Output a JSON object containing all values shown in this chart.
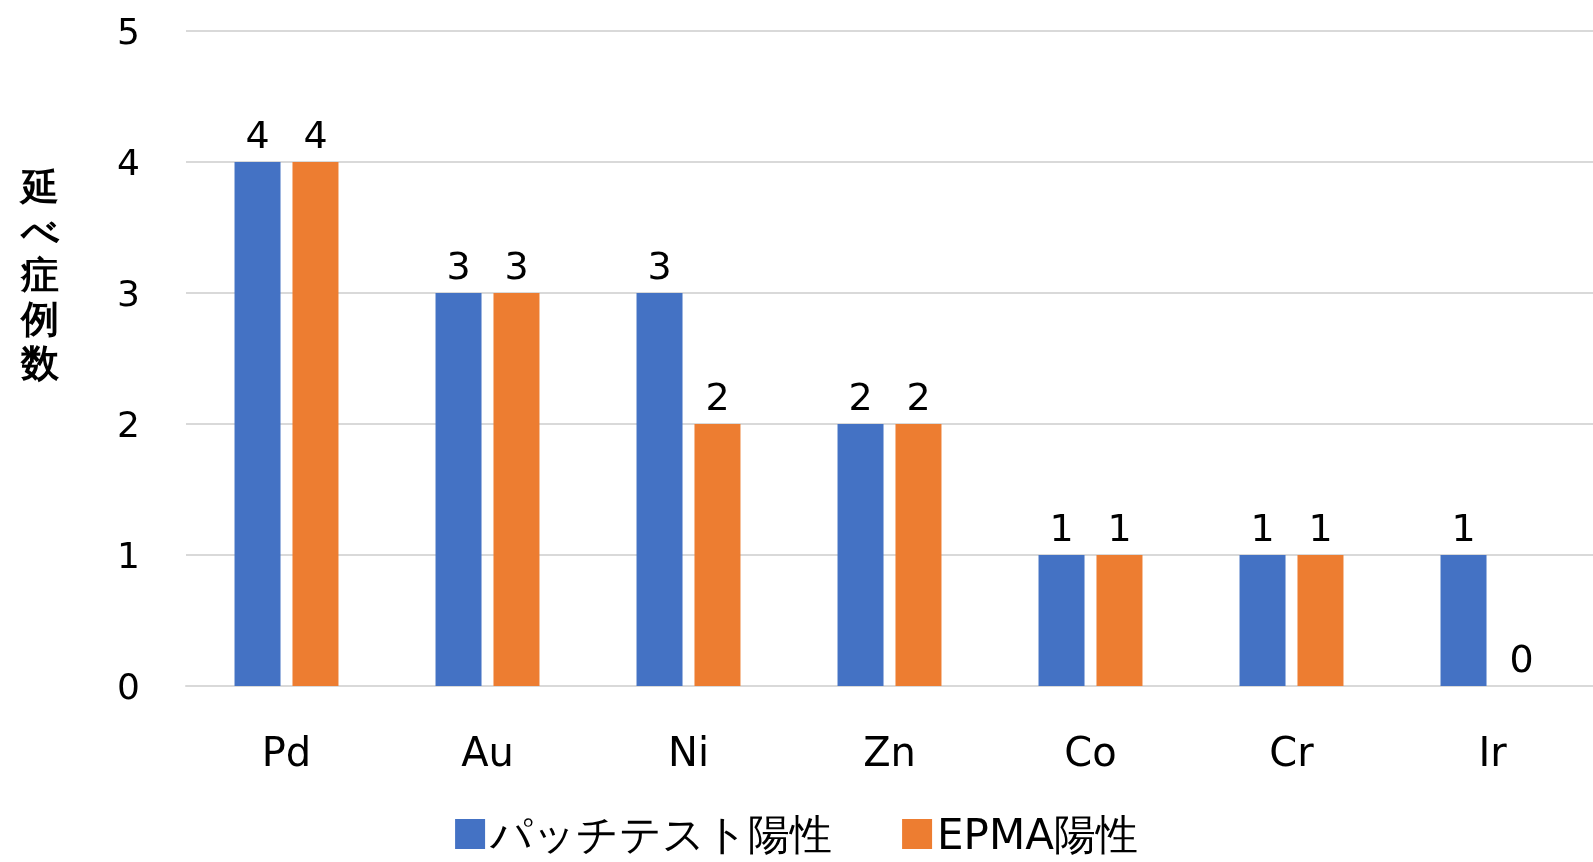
{
  "chart_data": {
    "type": "bar",
    "ylabel": "延べ症例数",
    "categories": [
      "Pd",
      "Au",
      "Ni",
      "Zn",
      "Co",
      "Cr",
      "Ir"
    ],
    "series": [
      {
        "name": "パッチテスト陽性",
        "color": "#4472c4",
        "values": [
          4,
          3,
          3,
          2,
          1,
          1,
          1
        ]
      },
      {
        "name": "EPMA陽性",
        "color": "#ed7d31",
        "values": [
          4,
          3,
          2,
          2,
          1,
          1,
          0
        ]
      }
    ],
    "ylim": [
      0,
      5
    ],
    "yticks": [
      0,
      1,
      2,
      3,
      4,
      5
    ],
    "grid": "y",
    "legend": "bottom",
    "data_labels": true
  }
}
